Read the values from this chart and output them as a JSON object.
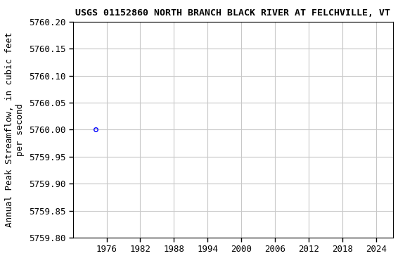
{
  "title": "USGS 01152860 NORTH BRANCH BLACK RIVER AT FELCHVILLE, VT",
  "xlabel": "",
  "ylabel": "Annual Peak Streamflow, in cubic feet\nper second",
  "x_data": [
    1974
  ],
  "y_data": [
    5760.0
  ],
  "xlim": [
    1970,
    2027
  ],
  "ylim": [
    5759.8,
    5760.2
  ],
  "yticks": [
    5759.8,
    5759.85,
    5759.9,
    5759.95,
    5760.0,
    5760.05,
    5760.1,
    5760.15,
    5760.2
  ],
  "xticks": [
    1976,
    1982,
    1988,
    1994,
    2000,
    2006,
    2012,
    2018,
    2024
  ],
  "marker_color": "#0000ff",
  "marker_style": "o",
  "marker_size": 4,
  "marker_facecolor": "none",
  "grid_color": "#c8c8c8",
  "background_color": "#ffffff",
  "title_fontsize": 9.5,
  "label_fontsize": 9,
  "tick_fontsize": 9
}
